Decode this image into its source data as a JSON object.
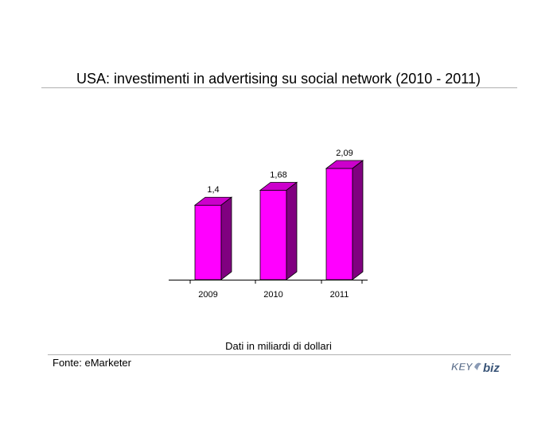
{
  "header": {
    "title": "USA: investimenti in advertising su social network (2010 - 2011)"
  },
  "chart_data": {
    "type": "bar",
    "categories": [
      "2009",
      "2010",
      "2011"
    ],
    "values": [
      1.4,
      1.68,
      2.09
    ],
    "value_labels": [
      "1,4",
      "1,68",
      "2,09"
    ],
    "title": "USA: investimenti in advertising su social network (2010 - 2011)",
    "xlabel": "",
    "ylabel": "",
    "ylim": [
      0,
      2.09
    ],
    "grid": false,
    "legend": "none",
    "style": "3d-column",
    "colors": {
      "front": "#ff00ff",
      "top": "#cc00cc",
      "side": "#800080"
    }
  },
  "footer": {
    "note": "Dati in miliardi di dollari",
    "source": "Fonte: eMarketer",
    "logo_text": "KEY4biz",
    "logo_colors": {
      "key": "#5a6d8a",
      "biz": "#3a5578",
      "accent": "#8a9ab5"
    }
  }
}
